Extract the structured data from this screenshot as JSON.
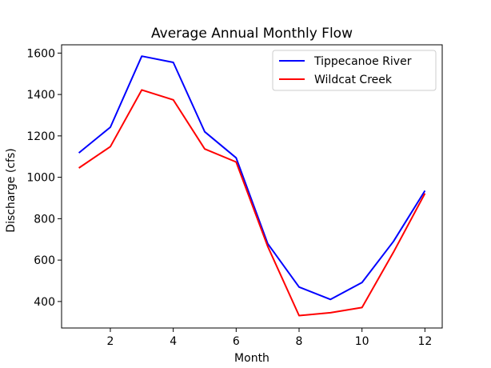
{
  "chart_data": {
    "type": "line",
    "title": "Average Annual Monthly Flow",
    "xlabel": "Month",
    "ylabel": "Discharge (cfs)",
    "xlim": [
      0.45,
      12.55
    ],
    "ylim": [
      272,
      1640
    ],
    "xticks": [
      2,
      4,
      6,
      8,
      10,
      12
    ],
    "yticks": [
      400,
      600,
      800,
      1000,
      1200,
      1400,
      1600
    ],
    "grid": false,
    "legend_position": "top-right",
    "x": [
      1,
      2,
      3,
      4,
      5,
      6,
      7,
      8,
      9,
      10,
      11,
      12
    ],
    "series": [
      {
        "name": "Tippecanoe River",
        "color": "#0000ff",
        "values": [
          1118,
          1242,
          1585,
          1555,
          1220,
          1094,
          680,
          470,
          410,
          492,
          690,
          935
        ]
      },
      {
        "name": "Wildcat Creek",
        "color": "#ff0000",
        "values": [
          1045,
          1148,
          1422,
          1374,
          1137,
          1074,
          667,
          332,
          346,
          371,
          638,
          922
        ]
      }
    ]
  }
}
